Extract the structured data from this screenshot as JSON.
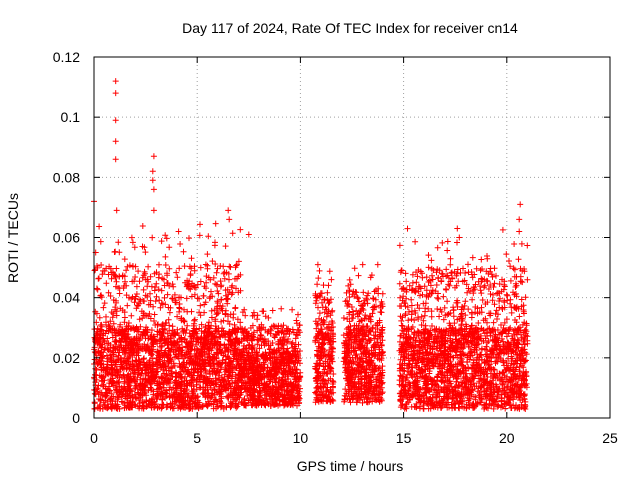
{
  "chart_data": {
    "type": "scatter",
    "title": "Day 117 of 2024, Rate Of TEC Index for receiver cn14",
    "xlabel": "GPS time / hours",
    "ylabel": "ROTI / TECUs",
    "xlim": [
      0,
      25
    ],
    "ylim": [
      0,
      0.12
    ],
    "x_ticks": [
      0,
      5,
      10,
      15,
      20,
      25
    ],
    "x_tick_labels": [
      "0",
      "5",
      "10",
      "15",
      "20",
      "25"
    ],
    "y_ticks": [
      0,
      0.02,
      0.04,
      0.06,
      0.08,
      0.1,
      0.12
    ],
    "y_tick_labels": [
      "0",
      "0.02",
      "0.04",
      "0.06",
      "0.08",
      "0.1",
      "0.12"
    ],
    "grid": true,
    "marker": "+",
    "color": "#ff0000",
    "series": [
      {
        "name": "ROTI",
        "notable_points": [
          {
            "x": 0.0,
            "y": 0.072
          },
          {
            "x": 1.05,
            "y": 0.112
          },
          {
            "x": 1.05,
            "y": 0.108
          },
          {
            "x": 1.05,
            "y": 0.099
          },
          {
            "x": 1.05,
            "y": 0.092
          },
          {
            "x": 1.05,
            "y": 0.086
          },
          {
            "x": 1.1,
            "y": 0.069
          },
          {
            "x": 2.9,
            "y": 0.087
          },
          {
            "x": 2.85,
            "y": 0.082
          },
          {
            "x": 2.85,
            "y": 0.079
          },
          {
            "x": 2.9,
            "y": 0.076
          },
          {
            "x": 2.9,
            "y": 0.069
          },
          {
            "x": 4.1,
            "y": 0.062
          },
          {
            "x": 6.5,
            "y": 0.069
          },
          {
            "x": 6.55,
            "y": 0.066
          },
          {
            "x": 7.5,
            "y": 0.061
          },
          {
            "x": 9.6,
            "y": 0.036
          },
          {
            "x": 10.85,
            "y": 0.051
          },
          {
            "x": 11.5,
            "y": 0.046
          },
          {
            "x": 13.75,
            "y": 0.051
          },
          {
            "x": 17.6,
            "y": 0.063
          },
          {
            "x": 17.7,
            "y": 0.06
          },
          {
            "x": 20.65,
            "y": 0.071
          },
          {
            "x": 20.6,
            "y": 0.066
          },
          {
            "x": 20.6,
            "y": 0.062
          }
        ],
        "clusters": [
          {
            "x_start": 0.0,
            "x_end": 7.1,
            "y_base_min": 0.003,
            "y_base_max": 0.03,
            "y_peak": 0.065
          },
          {
            "x_start": 7.1,
            "x_end": 10.0,
            "y_base_min": 0.004,
            "y_base_max": 0.022,
            "y_peak": 0.037
          },
          {
            "x_start": 10.7,
            "x_end": 11.6,
            "y_base_min": 0.005,
            "y_base_max": 0.03,
            "y_peak": 0.05
          },
          {
            "x_start": 12.1,
            "x_end": 14.0,
            "y_base_min": 0.005,
            "y_base_max": 0.03,
            "y_peak": 0.051
          },
          {
            "x_start": 14.8,
            "x_end": 21.0,
            "y_base_min": 0.003,
            "y_base_max": 0.03,
            "y_peak": 0.063
          }
        ]
      }
    ]
  }
}
